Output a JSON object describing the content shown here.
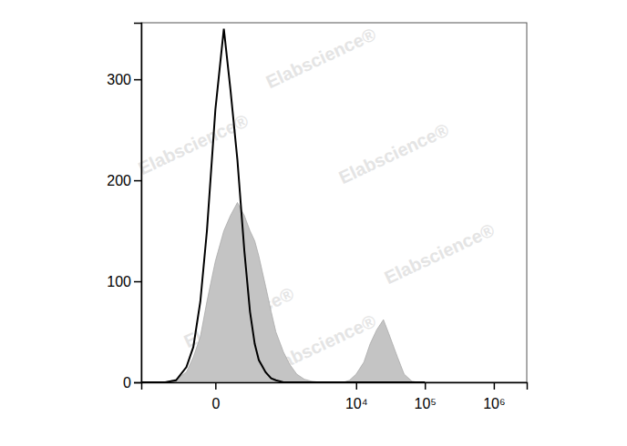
{
  "chart_data": {
    "type": "histogram",
    "log": "x",
    "grid": false,
    "watermark": "Elabscience®",
    "x": [
      -1000,
      -600,
      -400,
      -250,
      -150,
      -100,
      -60,
      -30,
      0,
      30,
      60,
      100,
      150,
      200,
      250,
      300,
      400,
      500,
      600,
      800,
      1000,
      1300,
      1700,
      2200,
      3000,
      4000,
      5000,
      6500,
      8000,
      10000,
      13000,
      16000,
      20000,
      25000,
      30000,
      40000,
      50000,
      65000,
      80000,
      100000
    ],
    "series": [
      {
        "type": "area",
        "color": "#c4c4c4",
        "values": [
          0,
          0,
          0,
          3,
          10,
          25,
          45,
          80,
          120,
          150,
          165,
          178,
          165,
          150,
          140,
          125,
          95,
          70,
          50,
          30,
          18,
          8,
          3,
          1,
          0,
          0,
          0,
          0,
          2,
          8,
          20,
          38,
          52,
          62,
          48,
          25,
          8,
          1,
          0,
          0
        ]
      },
      {
        "type": "line",
        "color": "#000000",
        "values": [
          0,
          0,
          0,
          2,
          15,
          35,
          80,
          150,
          270,
          350,
          290,
          220,
          130,
          70,
          38,
          22,
          10,
          4,
          2,
          0,
          0,
          0,
          0,
          0,
          0,
          0,
          0,
          0,
          0,
          0,
          0,
          0,
          0,
          0,
          0,
          0,
          0,
          0,
          0,
          0
        ]
      }
    ],
    "xlim": [
      -1000,
      3000000
    ],
    "xticks": [
      0,
      {
        "value": 10000,
        "label": "10⁴"
      },
      {
        "value": 100000,
        "label": "10⁵"
      },
      {
        "value": 1000000,
        "label": "10⁶"
      }
    ],
    "ylim": [
      0,
      356
    ],
    "yticks": [
      0,
      100,
      200,
      300
    ]
  }
}
